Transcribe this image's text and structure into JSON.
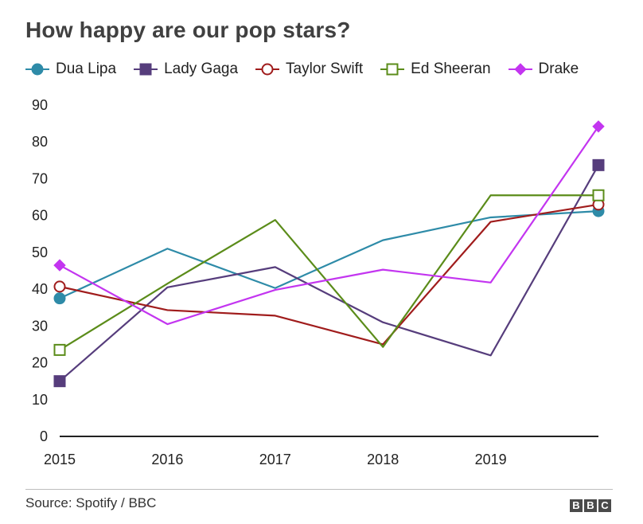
{
  "header": {
    "title": "How happy are our pop stars?"
  },
  "footer": {
    "source": "Source: Spotify / BBC",
    "logo_letters": [
      "B",
      "B",
      "C"
    ]
  },
  "chart_data": {
    "type": "line",
    "title": "How happy are our pop stars?",
    "xlabel": "",
    "ylabel": "",
    "x_ticks": [
      "2015",
      "2016",
      "2017",
      "2018",
      "2019"
    ],
    "y_ticks": [
      0,
      10,
      20,
      30,
      40,
      50,
      60,
      70,
      80,
      90
    ],
    "xlim": [
      2015,
      2020
    ],
    "ylim": [
      0,
      90
    ],
    "grid": false,
    "legend_position": "top",
    "series": [
      {
        "name": "Dua Lipa",
        "color": "#2e8ba8",
        "marker": "circle-filled",
        "x": [
          2015,
          2016,
          2017,
          2018,
          2019,
          2020
        ],
        "values": [
          37.5,
          51,
          40.3,
          53.3,
          59.5,
          61.2
        ]
      },
      {
        "name": "Lady Gaga",
        "color": "#563d7c",
        "marker": "square-filled",
        "x": [
          2015,
          2016,
          2017,
          2018,
          2019,
          2020
        ],
        "values": [
          15,
          40.5,
          46,
          31,
          22,
          73.7
        ]
      },
      {
        "name": "Taylor Swift",
        "color": "#a01c1c",
        "marker": "circle-open",
        "x": [
          2015,
          2016,
          2017,
          2018,
          2019,
          2020
        ],
        "values": [
          40.7,
          34.3,
          32.8,
          25,
          58.3,
          63
        ]
      },
      {
        "name": "Ed Sheeran",
        "color": "#5b8c1a",
        "marker": "square-open",
        "x": [
          2015,
          2016,
          2017,
          2018,
          2019,
          2020
        ],
        "values": [
          23.5,
          41.5,
          58.8,
          24.3,
          65.5,
          65.5
        ]
      },
      {
        "name": "Drake",
        "color": "#c335f0",
        "marker": "diamond-filled",
        "x": [
          2015,
          2016,
          2017,
          2018,
          2019,
          2020
        ],
        "values": [
          46.5,
          30.5,
          39.8,
          45.3,
          41.8,
          84.2
        ]
      }
    ]
  }
}
